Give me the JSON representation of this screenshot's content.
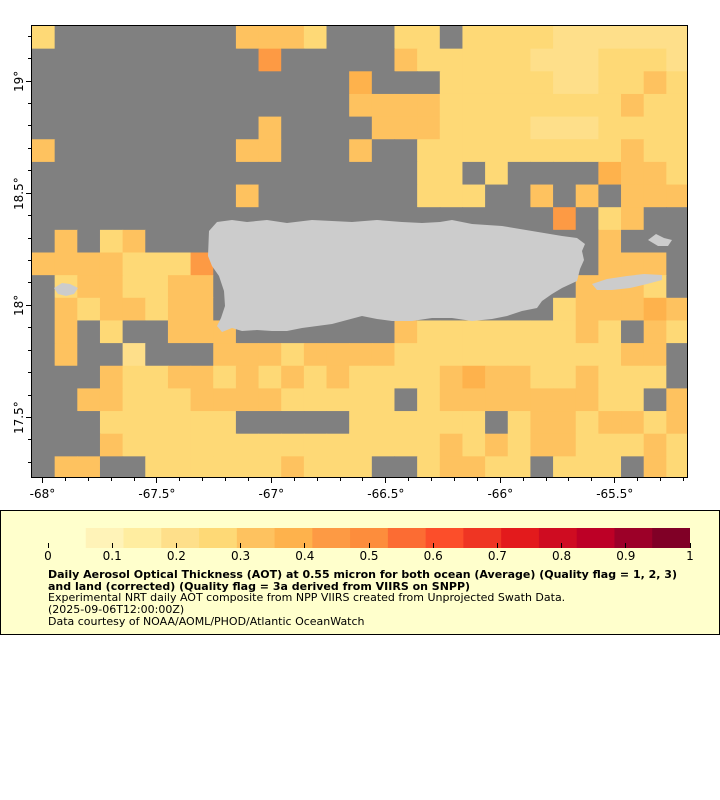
{
  "map": {
    "title": "Daily Aerosol Optical Thickness (AOT) at 0.55 micron for both ocean (Average) (Quality flag = 1, 2, 3) and land (corrected) (Quality flag = 3a derived from VIIRS on SNPP)",
    "lon_min": -68.05,
    "lon_max": -65.18,
    "lat_min": 17.23,
    "lat_max": 19.25,
    "x_ticks": [
      "-68°",
      "-67.5°",
      "-67°",
      "-66.5°",
      "-66°",
      "-65.5°"
    ],
    "x_tick_values": [
      -68,
      -67.5,
      -67,
      -66.5,
      -66,
      -65.5
    ],
    "y_ticks": [
      "19°",
      "18.5°",
      "18°",
      "17.5°"
    ],
    "y_tick_values": [
      19,
      18.5,
      18,
      17.5
    ],
    "missing_color": "#808080",
    "land_color": "#cccccc",
    "grid_cols": 29,
    "grid_rows": 20,
    "grid_note": "AOT cell values by row (north to south), null = no data",
    "aot_grid": [
      [
        0.25,
        null,
        null,
        null,
        null,
        null,
        null,
        null,
        null,
        0.3,
        0.3,
        0.3,
        0.28,
        null,
        null,
        null,
        0.28,
        0.28,
        null,
        0.28,
        0.25,
        0.25,
        0.28,
        0.22,
        0.22,
        0.22,
        0.22,
        0.22,
        0.22
      ],
      [
        null,
        null,
        null,
        null,
        null,
        null,
        null,
        null,
        null,
        null,
        0.45,
        null,
        null,
        null,
        null,
        null,
        0.3,
        0.28,
        0.28,
        0.28,
        0.25,
        0.25,
        0.22,
        0.22,
        0.22,
        0.25,
        0.25,
        0.25,
        0.22
      ],
      [
        null,
        null,
        null,
        null,
        null,
        null,
        null,
        null,
        null,
        null,
        null,
        null,
        null,
        null,
        0.38,
        null,
        null,
        null,
        0.28,
        0.25,
        0.25,
        0.25,
        0.25,
        0.22,
        0.22,
        0.25,
        0.25,
        0.3,
        0.25
      ],
      [
        null,
        null,
        null,
        null,
        null,
        null,
        null,
        null,
        null,
        null,
        null,
        null,
        null,
        null,
        0.35,
        0.35,
        0.3,
        0.3,
        0.28,
        0.28,
        0.25,
        0.25,
        0.25,
        0.25,
        0.25,
        0.28,
        0.3,
        0.25,
        0.25
      ],
      [
        null,
        null,
        null,
        null,
        null,
        null,
        null,
        null,
        null,
        null,
        0.35,
        null,
        null,
        null,
        null,
        0.35,
        0.3,
        0.3,
        0.28,
        0.28,
        0.28,
        0.25,
        0.22,
        0.22,
        0.22,
        0.25,
        0.28,
        0.25,
        0.28
      ],
      [
        0.35,
        null,
        null,
        null,
        null,
        null,
        null,
        null,
        null,
        0.35,
        0.3,
        null,
        null,
        null,
        0.32,
        null,
        null,
        0.28,
        0.28,
        0.28,
        0.28,
        0.25,
        0.25,
        0.25,
        0.25,
        0.28,
        0.3,
        0.28,
        0.25
      ],
      [
        null,
        null,
        null,
        null,
        null,
        null,
        null,
        null,
        null,
        null,
        null,
        null,
        null,
        null,
        null,
        null,
        null,
        0.28,
        0.28,
        null,
        0.28,
        null,
        null,
        null,
        null,
        0.4,
        0.32,
        0.32,
        0.28
      ],
      [
        null,
        null,
        null,
        null,
        null,
        null,
        null,
        null,
        null,
        0.35,
        null,
        null,
        null,
        null,
        null,
        null,
        null,
        0.28,
        0.28,
        0.28,
        null,
        null,
        0.35,
        null,
        0.3,
        null,
        0.3,
        0.32,
        0.35
      ],
      [
        null,
        null,
        null,
        null,
        null,
        null,
        null,
        null,
        null,
        null,
        null,
        null,
        null,
        null,
        null,
        null,
        null,
        null,
        null,
        null,
        null,
        null,
        null,
        0.45,
        null,
        0.28,
        0.3,
        null,
        null
      ],
      [
        null,
        0.3,
        null,
        0.28,
        0.3,
        null,
        null,
        null,
        null,
        null,
        null,
        null,
        null,
        null,
        null,
        null,
        null,
        null,
        null,
        null,
        null,
        null,
        null,
        null,
        null,
        0.3,
        null,
        null,
        null
      ],
      [
        0.35,
        0.3,
        0.32,
        0.32,
        0.28,
        0.28,
        0.28,
        0.45,
        null,
        null,
        null,
        null,
        null,
        null,
        null,
        null,
        null,
        null,
        null,
        null,
        null,
        null,
        null,
        null,
        null,
        0.32,
        0.3,
        0.3,
        null
      ],
      [
        null,
        0.28,
        0.3,
        0.3,
        0.28,
        0.28,
        0.35,
        0.3,
        null,
        null,
        null,
        null,
        null,
        null,
        null,
        null,
        null,
        null,
        null,
        null,
        null,
        null,
        null,
        null,
        0.3,
        0.3,
        0.3,
        0.28,
        null
      ],
      [
        null,
        0.3,
        0.28,
        0.32,
        0.3,
        0.28,
        0.32,
        0.32,
        null,
        null,
        null,
        null,
        null,
        null,
        null,
        null,
        null,
        null,
        null,
        null,
        null,
        null,
        null,
        0.28,
        0.3,
        0.3,
        0.3,
        0.4,
        0.3
      ],
      [
        null,
        0.32,
        null,
        0.25,
        null,
        null,
        0.3,
        0.3,
        0.3,
        null,
        null,
        null,
        null,
        null,
        null,
        null,
        0.3,
        0.28,
        0.28,
        0.28,
        0.28,
        0.28,
        0.28,
        0.28,
        0.3,
        0.28,
        null,
        0.3,
        0.28
      ],
      [
        null,
        0.35,
        null,
        null,
        0.22,
        null,
        null,
        null,
        0.3,
        0.3,
        0.3,
        0.28,
        0.3,
        0.3,
        0.3,
        0.3,
        0.28,
        0.28,
        0.28,
        0.28,
        0.28,
        0.28,
        0.28,
        0.28,
        0.28,
        0.28,
        0.3,
        0.3,
        null
      ],
      [
        null,
        null,
        null,
        0.32,
        0.28,
        0.28,
        0.32,
        0.3,
        0.28,
        0.3,
        0.28,
        0.3,
        0.28,
        0.3,
        0.28,
        0.28,
        0.28,
        0.28,
        0.3,
        0.38,
        0.3,
        0.3,
        0.28,
        0.28,
        0.3,
        0.28,
        0.28,
        0.28,
        null
      ],
      [
        null,
        null,
        0.3,
        0.3,
        0.28,
        0.28,
        0.28,
        0.3,
        0.32,
        0.35,
        0.3,
        0.28,
        0.28,
        0.28,
        0.28,
        0.28,
        null,
        0.28,
        0.3,
        0.3,
        0.3,
        0.32,
        0.3,
        0.3,
        0.3,
        0.28,
        0.28,
        null,
        0.3
      ],
      [
        null,
        null,
        null,
        0.28,
        0.28,
        0.28,
        0.25,
        0.25,
        0.28,
        null,
        null,
        null,
        null,
        null,
        0.28,
        0.28,
        0.28,
        0.28,
        0.28,
        0.28,
        null,
        0.28,
        0.3,
        0.32,
        0.28,
        0.3,
        0.3,
        0.28,
        0.3
      ],
      [
        null,
        null,
        null,
        0.3,
        0.28,
        0.28,
        0.28,
        0.25,
        0.25,
        0.25,
        0.25,
        0.25,
        0.28,
        0.28,
        0.28,
        0.28,
        0.28,
        0.28,
        0.3,
        0.28,
        0.3,
        0.28,
        0.3,
        0.3,
        0.28,
        0.28,
        0.28,
        0.3,
        0.28
      ],
      [
        null,
        0.32,
        0.32,
        null,
        null,
        0.28,
        0.28,
        0.28,
        0.28,
        0.28,
        0.28,
        0.3,
        0.28,
        0.28,
        0.28,
        null,
        null,
        0.28,
        0.3,
        0.32,
        0.28,
        0.28,
        null,
        0.28,
        0.28,
        0.28,
        null,
        0.3,
        0.28
      ]
    ]
  },
  "colorbar": {
    "labels": [
      "0",
      "0.1",
      "0.2",
      "0.3",
      "0.4",
      "0.5",
      "0.6",
      "0.7",
      "0.8",
      "0.9",
      "1"
    ],
    "min": 0,
    "max": 1,
    "colors": [
      "#ffffcc",
      "#fff3b8",
      "#ffeda0",
      "#fedf8a",
      "#fed976",
      "#fec25f",
      "#feb24c",
      "#fd9a44",
      "#fd8d3c",
      "#fc6c33",
      "#fc4e2a",
      "#ef3523",
      "#e31a1c",
      "#cf0c21",
      "#bd0026",
      "#9c0028",
      "#800026"
    ]
  },
  "legend": {
    "title": "Daily Aerosol Optical Thickness (AOT) at 0.55 micron for both ocean (Average) (Quality flag = 1, 2, 3) and land (corrected) (Quality flag = 3a derived from VIIRS on SNPP)",
    "line1": "Experimental NRT daily AOT composite from NPP VIIRS created from Unprojected Swath Data.",
    "line2": "(2025-09-06T12:00:00Z)",
    "line3": "Data courtesy of NOAA/AOML/PHOD/Atlantic OceanWatch"
  }
}
